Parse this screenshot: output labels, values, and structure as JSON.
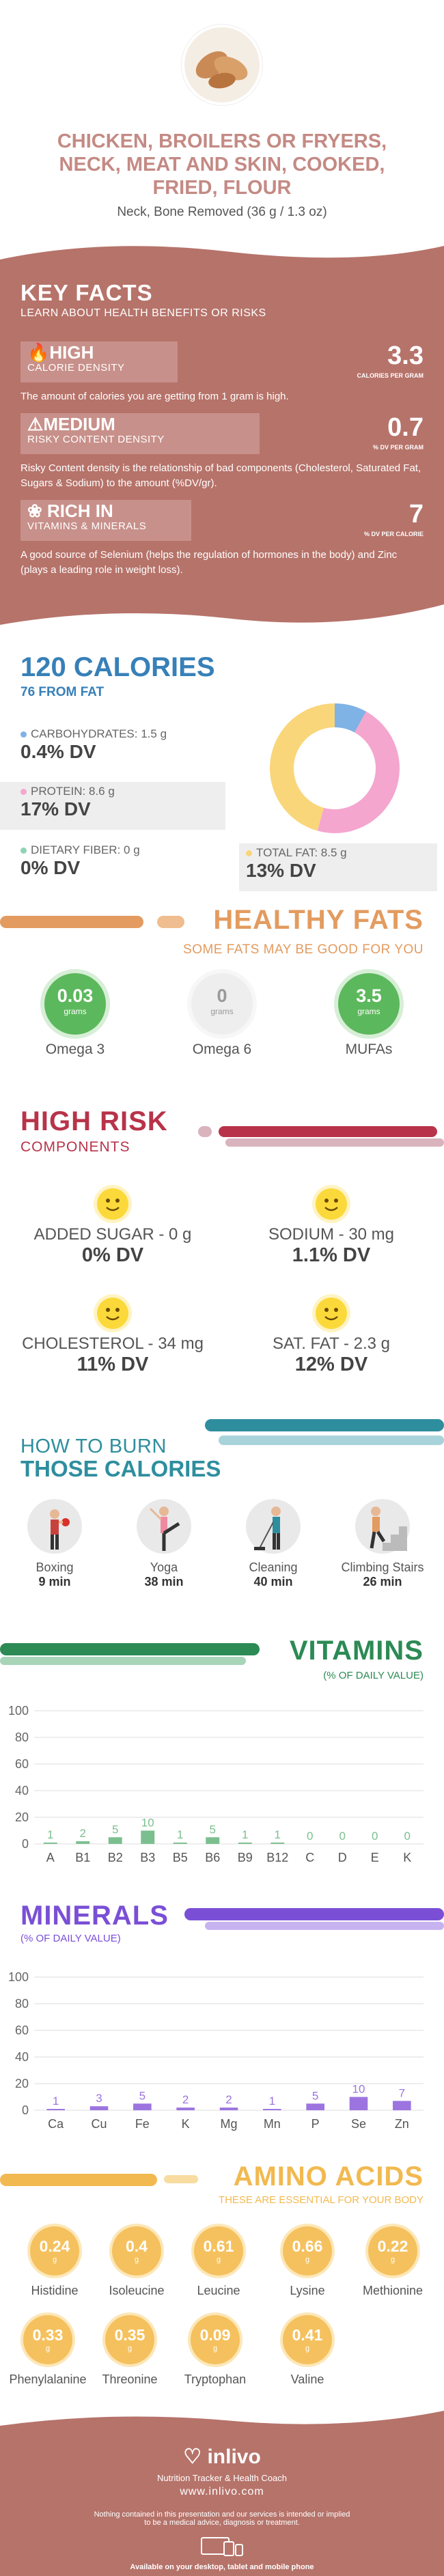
{
  "header": {
    "title_lines": [
      "CHICKEN, BROILERS OR FRYERS,",
      "NECK, MEAT AND SKIN, COOKED,",
      "FRIED, FLOUR"
    ],
    "serving": "Neck, Bone Removed (36 g / 1.3 oz)"
  },
  "key_facts": {
    "title": "KEY FACTS",
    "subtitle": "LEARN ABOUT HEALTH BENEFITS OR RISKS",
    "items": [
      {
        "level": "HIGH",
        "label": "CALORIE DENSITY",
        "value": "3.3",
        "unit": "CALORIES PER GRAM",
        "desc": "The amount of calories you are getting from 1 gram is high."
      },
      {
        "level": "MEDIUM",
        "label": "RISKY CONTENT DENSITY",
        "value": "0.7",
        "unit": "% DV PER GRAM",
        "desc": "Risky Content density is the relationship of bad components (Cholesterol, Saturated Fat, Sugars & Sodium) to the amount (%DV/gr)."
      },
      {
        "level": "RICH IN",
        "label": "VITAMINS & MINERALS",
        "value": "7",
        "unit": "% DV PER CALORIE",
        "desc": "A good source of Selenium (helps the regulation of hormones in the body) and Zinc (plays a leading role in weight loss)."
      }
    ]
  },
  "calories": {
    "title": "120 CALORIES",
    "subtitle": "76 FROM FAT",
    "nutrients": [
      {
        "label": "CARBOHYDRATES: 1.5 g",
        "dv": "0.4% DV",
        "color": "#7fb2e5"
      },
      {
        "label": "PROTEIN: 8.6 g",
        "dv": "17% DV",
        "color": "#f4a6cf"
      },
      {
        "label": "DIETARY FIBER: 0 g",
        "dv": "0% DV",
        "color": "#8fd3b6"
      },
      {
        "label": "TOTAL FAT: 8.5 g",
        "dv": "13% DV",
        "color": "#f9d67a"
      }
    ]
  },
  "chart_data": [
    {
      "type": "pie",
      "title": "",
      "categories": [
        "Carbohydrates",
        "Protein",
        "Total Fat"
      ],
      "values": [
        1.5,
        8.6,
        8.5
      ],
      "colors": [
        "#7fb2e5",
        "#f4a6cf",
        "#f9d67a"
      ]
    },
    {
      "type": "bar",
      "title": "VITAMINS",
      "categories": [
        "A",
        "B1",
        "B2",
        "B3",
        "B5",
        "B6",
        "B9",
        "B12",
        "C",
        "D",
        "E",
        "K"
      ],
      "values": [
        1,
        2,
        5,
        10,
        1,
        5,
        1,
        1,
        0,
        0,
        0,
        0
      ],
      "ylim": [
        0,
        100
      ],
      "yticks": [
        0,
        20,
        40,
        60,
        80,
        100
      ],
      "bar_color": "#7cbf8f"
    },
    {
      "type": "bar",
      "title": "MINERALS",
      "categories": [
        "Ca",
        "Cu",
        "Fe",
        "K",
        "Mg",
        "Mn",
        "P",
        "Se",
        "Zn"
      ],
      "values": [
        1,
        3,
        5,
        2,
        2,
        1,
        5,
        10,
        7
      ],
      "ylim": [
        0,
        100
      ],
      "yticks": [
        0,
        20,
        40,
        60,
        80,
        100
      ],
      "bar_color": "#9c74e0"
    }
  ],
  "healthy_fats": {
    "title": "HEALTHY FATS",
    "subtitle": "SOME FATS MAY BE GOOD FOR YOU",
    "items": [
      {
        "value": "0.03",
        "unit": "grams",
        "label": "Omega 3",
        "color": "#5cb85c"
      },
      {
        "value": "0",
        "unit": "grams",
        "label": "Omega 6",
        "color": "#eeeeee"
      },
      {
        "value": "3.5",
        "unit": "grams",
        "label": "MUFAs",
        "color": "#5cb85c"
      }
    ]
  },
  "high_risk": {
    "title": "HIGH RISK",
    "subtitle": "COMPONENTS",
    "items": [
      {
        "label": "ADDED SUGAR - 0 g",
        "dv": "0% DV"
      },
      {
        "label": "SODIUM - 30 mg",
        "dv": "1.1% DV"
      },
      {
        "label": "CHOLESTEROL - 34 mg",
        "dv": "11% DV"
      },
      {
        "label": "SAT. FAT - 2.3 g",
        "dv": "12% DV"
      }
    ]
  },
  "burn": {
    "title_top": "HOW TO BURN",
    "title_bottom": "THOSE CALORIES",
    "items": [
      {
        "name": "Boxing",
        "minutes": "9 min"
      },
      {
        "name": "Yoga",
        "minutes": "38 min"
      },
      {
        "name": "Cleaning",
        "minutes": "40 min"
      },
      {
        "name": "Climbing Stairs",
        "minutes": "26 min"
      }
    ]
  },
  "vitamins": {
    "title": "VITAMINS",
    "subtitle": "(% OF DAILY VALUE)"
  },
  "minerals": {
    "title": "MINERALS",
    "subtitle": "(% OF DAILY VALUE)"
  },
  "amino": {
    "title": "AMINO ACIDS",
    "subtitle": "THESE ARE ESSENTIAL FOR YOUR BODY",
    "items": [
      {
        "value": "0.24",
        "unit": "g",
        "label": "Histidine"
      },
      {
        "value": "0.4",
        "unit": "g",
        "label": "Isoleucine"
      },
      {
        "value": "0.61",
        "unit": "g",
        "label": "Leucine"
      },
      {
        "value": "0.66",
        "unit": "g",
        "label": "Lysine"
      },
      {
        "value": "0.22",
        "unit": "g",
        "label": "Methionine"
      },
      {
        "value": "0.33",
        "unit": "g",
        "label": "Phenylalanine"
      },
      {
        "value": "0.35",
        "unit": "g",
        "label": "Threonine"
      },
      {
        "value": "0.09",
        "unit": "g",
        "label": "Tryptophan"
      },
      {
        "value": "0.41",
        "unit": "g",
        "label": "Valine"
      }
    ]
  },
  "footer": {
    "brand": "inlivo",
    "tagline": "Nutrition Tracker & Health Coach",
    "url": "www.inlivo.com",
    "disclaimer_lines": [
      "Nothing contained in this presentation and our services is intended or implied",
      "to be a medical advice, diagnosis or treatment."
    ],
    "available": "Available on your desktop, tablet and mobile phone"
  },
  "colors": {
    "brand_rose": "#b6736a",
    "title_blue": "#3780b8",
    "fats_orange": "#e39b5f",
    "risk_red": "#b8334a",
    "burn_teal": "#2e8e9e",
    "vitamin_green": "#2c8a55",
    "mineral_purple": "#7a4fd6",
    "amino_yellow": "#f2b950"
  }
}
